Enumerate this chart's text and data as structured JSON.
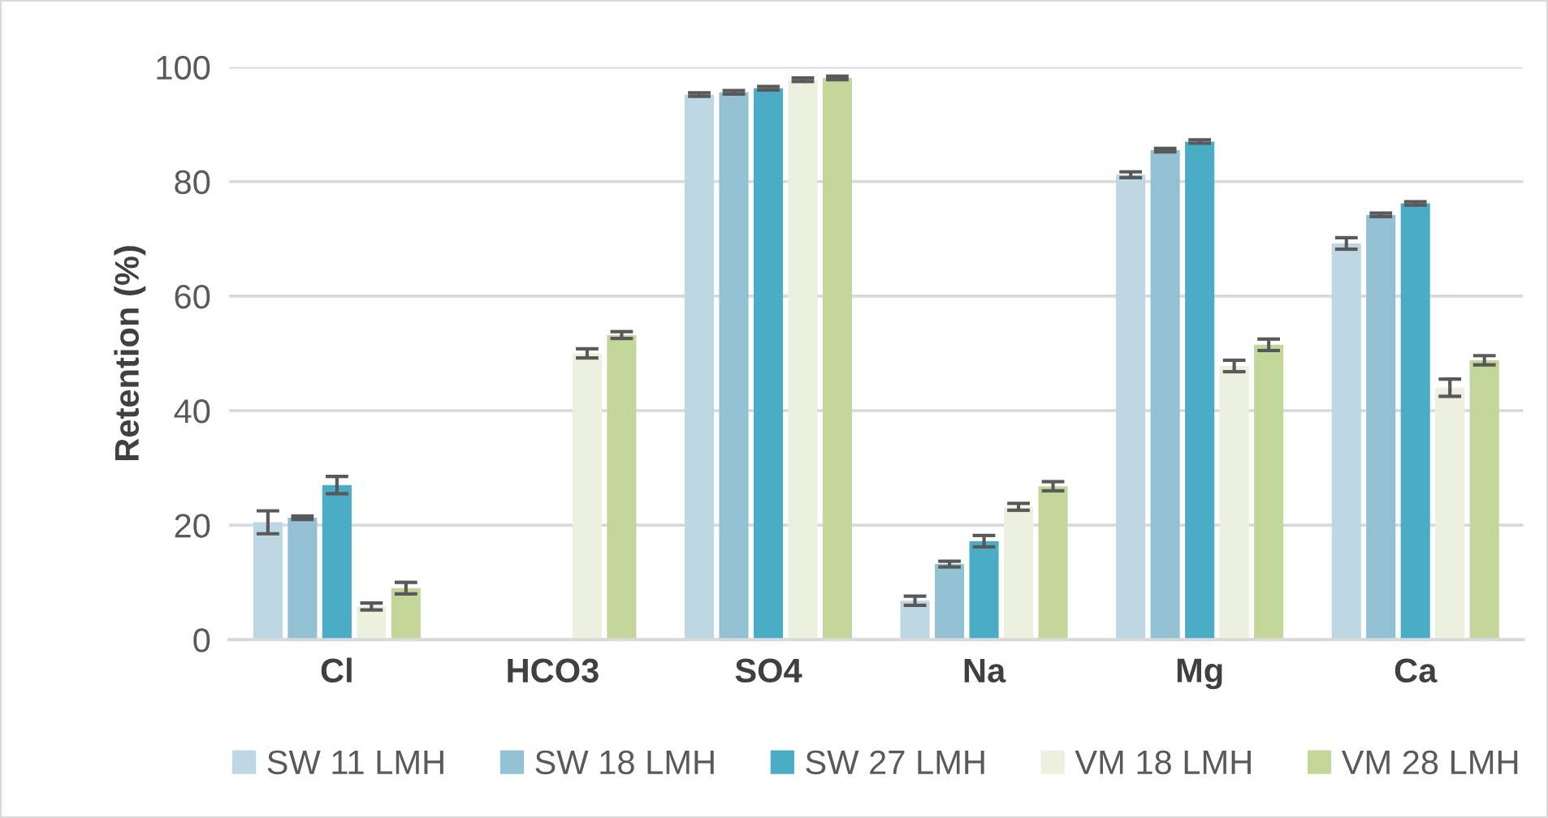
{
  "chart_data": {
    "type": "bar",
    "ylabel": "Retention (%)",
    "categories": [
      "Cl",
      "HCO3",
      "SO4",
      "Na",
      "Mg",
      "Ca"
    ],
    "ylim": [
      0,
      100
    ],
    "yticks": [
      0,
      20,
      40,
      60,
      80,
      100
    ],
    "grid": "y",
    "legend": "bottom",
    "series": [
      {
        "name": "SW 11 LMH",
        "color": "#bdd7e3",
        "values": [
          20.5,
          0,
          95.2,
          6.8,
          81.2,
          69.2
        ],
        "errors": [
          2,
          null,
          0.3,
          0.8,
          0.5,
          1
        ]
      },
      {
        "name": "SW 18 LMH",
        "color": "#92c1d4",
        "values": [
          21.3,
          0,
          95.6,
          13.2,
          85.5,
          74.2
        ],
        "errors": [
          0.3,
          null,
          0.3,
          0.5,
          0.3,
          0.3
        ]
      },
      {
        "name": "SW 27 LMH",
        "color": "#4bacc6",
        "values": [
          27,
          0,
          96.3,
          17.2,
          87,
          76.2
        ],
        "errors": [
          1.5,
          null,
          0.3,
          1,
          0.3,
          0.3
        ]
      },
      {
        "name": "VM 18 LMH",
        "color": "#ebf1de",
        "values": [
          5.8,
          50,
          97.8,
          23.2,
          47.8,
          44
        ],
        "errors": [
          0.6,
          0.8,
          0.3,
          0.6,
          1,
          1.5
        ]
      },
      {
        "name": "VM 28 LMH",
        "color": "#c4d79b",
        "values": [
          9,
          53.2,
          98.1,
          26.8,
          51.5,
          48.8
        ],
        "errors": [
          1,
          0.6,
          0.3,
          0.8,
          1,
          0.8
        ]
      }
    ]
  }
}
